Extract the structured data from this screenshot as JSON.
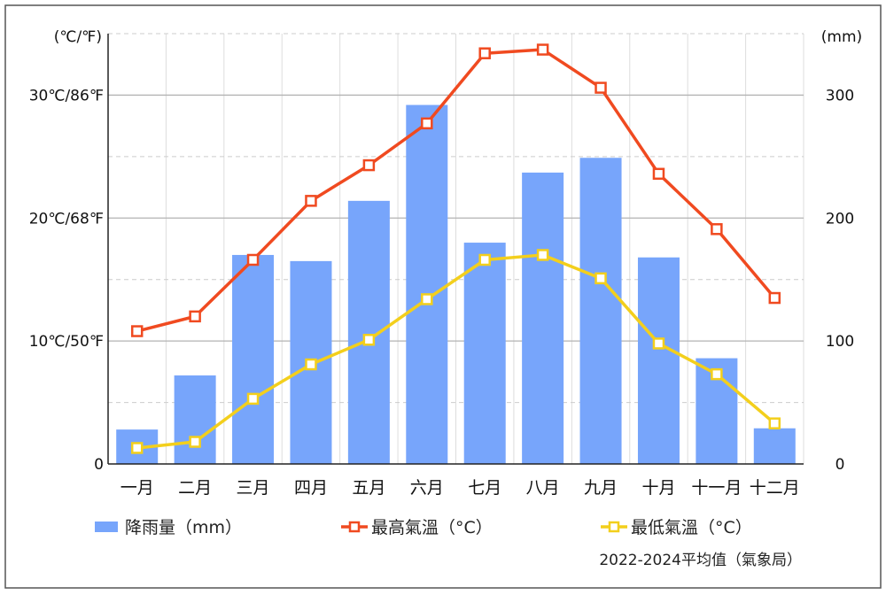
{
  "chart_data": {
    "type": "bar",
    "categories": [
      "一月",
      "二月",
      "三月",
      "四月",
      "五月",
      "六月",
      "七月",
      "八月",
      "九月",
      "十月",
      "十一月",
      "十二月"
    ],
    "series": [
      {
        "name": "降雨量（mm）",
        "type": "bar",
        "axis": "right",
        "color": "#77a5fb",
        "values": [
          28,
          72,
          170,
          165,
          214,
          292,
          180,
          237,
          249,
          168,
          86,
          29
        ]
      },
      {
        "name": "最高氣溫（°C）",
        "type": "line",
        "axis": "left",
        "color": "#f04a20",
        "values": [
          10.8,
          12.0,
          16.6,
          21.4,
          24.3,
          27.7,
          33.4,
          33.7,
          30.6,
          23.6,
          19.1,
          13.5
        ]
      },
      {
        "name": "最低氣溫（°C）",
        "type": "line",
        "axis": "left",
        "color": "#f3cf1c",
        "values": [
          1.3,
          1.8,
          5.3,
          8.1,
          10.1,
          13.4,
          16.6,
          17.0,
          15.1,
          9.8,
          7.3,
          3.3
        ]
      }
    ],
    "left_axis": {
      "unit_label": "(℃/℉)",
      "range": [
        0,
        35
      ],
      "ticks": [
        {
          "value": 0,
          "label": "0"
        },
        {
          "value": 10,
          "label": "10℃/50℉"
        },
        {
          "value": 20,
          "label": "20℃/68℉"
        },
        {
          "value": 30,
          "label": "30℃/86℉"
        }
      ]
    },
    "right_axis": {
      "unit_label": "(mm)",
      "range": [
        0,
        350
      ],
      "ticks": [
        {
          "value": 0,
          "label": "0"
        },
        {
          "value": 100,
          "label": "100"
        },
        {
          "value": 200,
          "label": "200"
        },
        {
          "value": 300,
          "label": "300"
        }
      ]
    },
    "grid": true,
    "legend_position": "bottom",
    "note": "2022-2024平均值（氣象局）"
  }
}
